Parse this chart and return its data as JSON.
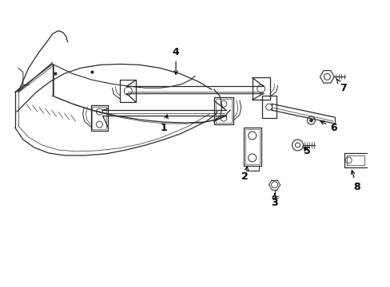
{
  "background_color": "#ffffff",
  "line_color": "#2a2a2a",
  "label_color": "#000000",
  "fig_width": 4.89,
  "fig_height": 3.6,
  "dpi": 100
}
